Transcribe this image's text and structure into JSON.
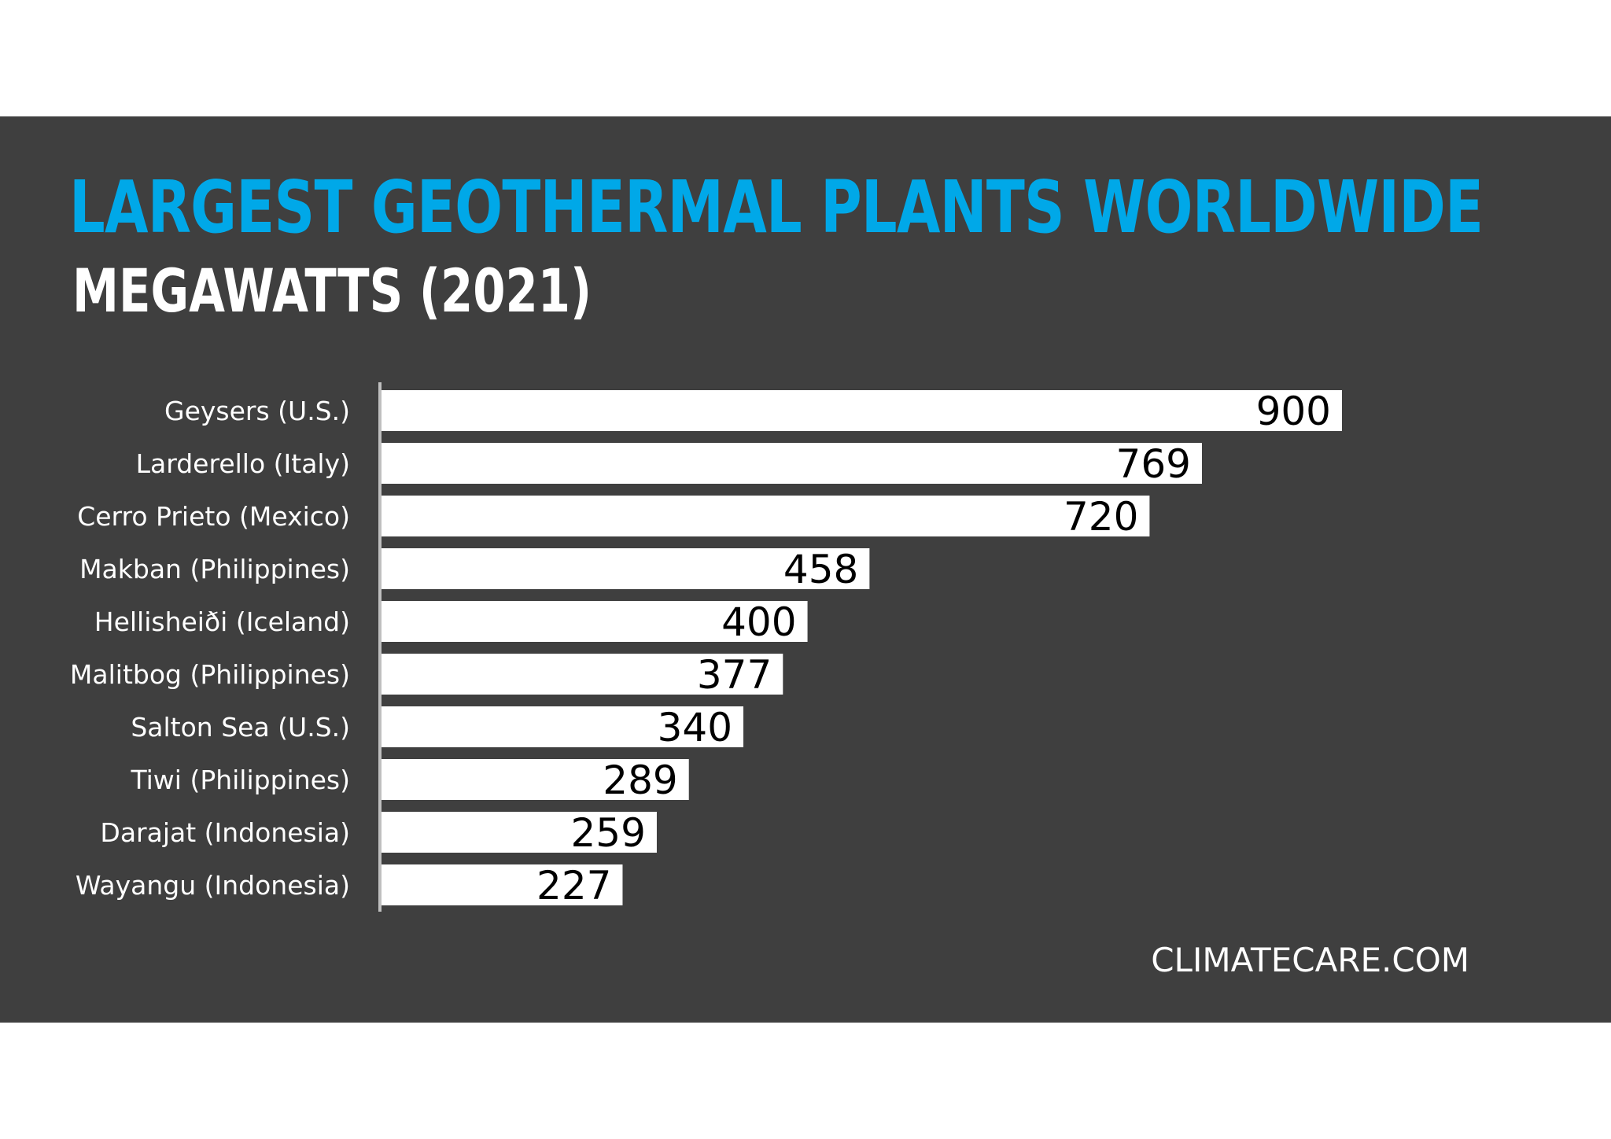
{
  "chart_data": {
    "type": "bar",
    "orientation": "horizontal",
    "title": "LARGEST GEOTHERMAL PLANTS WORLDWIDE",
    "subtitle": "MEGAWATTS (2021)",
    "categories": [
      "Geysers (U.S.)",
      "Larderello (Italy)",
      "Cerro Prieto (Mexico)",
      "Makban (Philippines)",
      "Hellisheiði (Iceland)",
      "Malitbog (Philippines)",
      "Salton Sea (U.S.)",
      "Tiwi (Philippines)",
      "Darajat (Indonesia)",
      "Wayangu (Indonesia)"
    ],
    "values": [
      900,
      769,
      720,
      458,
      400,
      377,
      340,
      289,
      259,
      227
    ],
    "xlim": [
      0,
      900
    ],
    "grid": false,
    "legend": "none",
    "data_labels": "inside-end"
  },
  "colors": {
    "background": "#3f3f3f",
    "title": "#00a8e8",
    "subtitle": "#ffffff",
    "bar": "#ffffff",
    "axis": "#bfbfbf",
    "category_text": "#ffffff",
    "value_text": "#000000"
  },
  "footer": {
    "source": "CLIMATECARE.COM"
  }
}
